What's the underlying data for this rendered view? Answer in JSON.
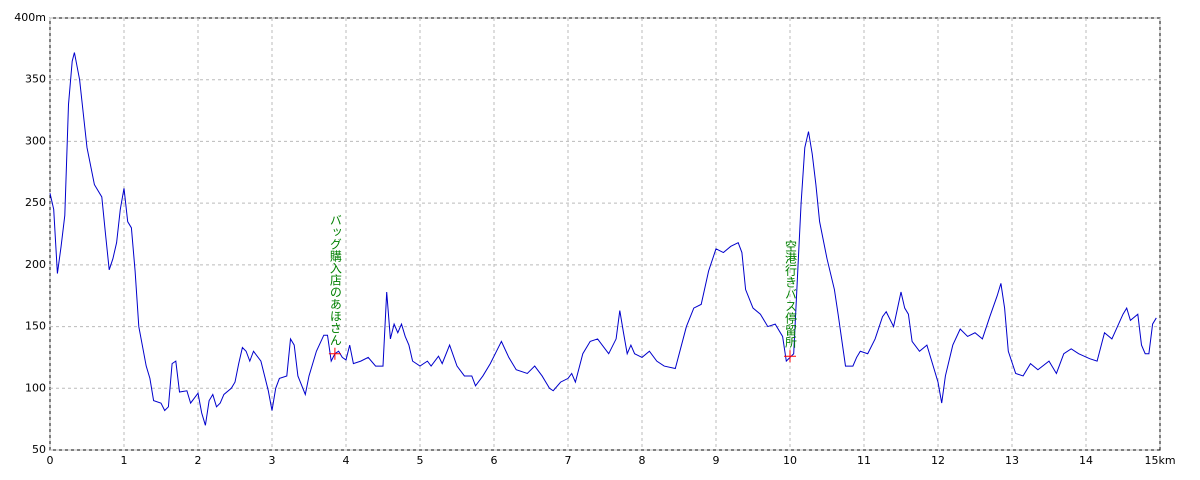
{
  "chart_data": {
    "type": "line",
    "x": [
      0,
      0.05,
      0.1,
      0.15,
      0.2,
      0.25,
      0.3,
      0.33,
      0.4,
      0.5,
      0.6,
      0.7,
      0.75,
      0.8,
      0.85,
      0.9,
      0.95,
      1.0,
      1.05,
      1.1,
      1.15,
      1.2,
      1.3,
      1.35,
      1.4,
      1.5,
      1.55,
      1.6,
      1.65,
      1.7,
      1.75,
      1.85,
      1.9,
      2.0,
      2.05,
      2.1,
      2.15,
      2.2,
      2.25,
      2.3,
      2.35,
      2.45,
      2.5,
      2.55,
      2.6,
      2.65,
      2.7,
      2.75,
      2.85,
      2.95,
      3.0,
      3.05,
      3.1,
      3.2,
      3.25,
      3.3,
      3.35,
      3.45,
      3.5,
      3.6,
      3.7,
      3.75,
      3.8,
      3.85,
      3.9,
      3.95,
      4.0,
      4.05,
      4.1,
      4.2,
      4.3,
      4.4,
      4.5,
      4.55,
      4.6,
      4.65,
      4.7,
      4.75,
      4.8,
      4.85,
      4.9,
      5.0,
      5.1,
      5.15,
      5.25,
      5.3,
      5.4,
      5.5,
      5.6,
      5.7,
      5.75,
      5.85,
      5.95,
      6.05,
      6.1,
      6.2,
      6.3,
      6.45,
      6.55,
      6.65,
      6.75,
      6.8,
      6.9,
      7.0,
      7.05,
      7.1,
      7.2,
      7.3,
      7.4,
      7.5,
      7.55,
      7.65,
      7.7,
      7.75,
      7.8,
      7.85,
      7.9,
      8.0,
      8.1,
      8.2,
      8.3,
      8.45,
      8.6,
      8.7,
      8.8,
      8.9,
      9.0,
      9.1,
      9.2,
      9.3,
      9.35,
      9.4,
      9.5,
      9.6,
      9.7,
      9.8,
      9.9,
      9.95,
      10.05,
      10.15,
      10.2,
      10.25,
      10.3,
      10.35,
      10.4,
      10.5,
      10.6,
      10.65,
      10.75,
      10.85,
      10.9,
      10.95,
      11.05,
      11.15,
      11.25,
      11.3,
      11.4,
      11.5,
      11.55,
      11.6,
      11.65,
      11.75,
      11.85,
      11.95,
      12.0,
      12.05,
      12.1,
      12.2,
      12.3,
      12.4,
      12.5,
      12.6,
      12.7,
      12.8,
      12.85,
      12.9,
      12.95,
      13.05,
      13.15,
      13.25,
      13.35,
      13.5,
      13.6,
      13.7,
      13.8,
      13.9,
      14.05,
      14.15,
      14.25,
      14.35,
      14.5,
      14.55,
      14.6,
      14.7,
      14.75,
      14.8,
      14.85,
      14.9,
      14.95
    ],
    "series": [
      {
        "color": "#0000cc",
        "values": [
          258,
          245,
          193,
          215,
          240,
          330,
          365,
          372,
          350,
          295,
          265,
          255,
          225,
          196,
          205,
          218,
          245,
          262,
          235,
          230,
          195,
          150,
          118,
          108,
          90,
          88,
          82,
          85,
          120,
          122,
          97,
          98,
          88,
          96,
          80,
          70,
          90,
          95,
          85,
          88,
          95,
          100,
          105,
          120,
          133,
          130,
          122,
          130,
          122,
          98,
          82,
          100,
          108,
          110,
          140,
          135,
          110,
          95,
          110,
          130,
          143,
          143,
          122,
          128,
          130,
          125,
          123,
          135,
          120,
          122,
          125,
          118,
          118,
          178,
          140,
          152,
          145,
          152,
          142,
          135,
          122,
          118,
          122,
          118,
          126,
          120,
          135,
          118,
          110,
          110,
          102,
          110,
          120,
          132,
          138,
          125,
          115,
          112,
          118,
          110,
          100,
          98,
          105,
          108,
          112,
          105,
          128,
          138,
          140,
          132,
          128,
          140,
          163,
          145,
          128,
          135,
          128,
          125,
          130,
          122,
          118,
          116,
          150,
          165,
          168,
          195,
          213,
          210,
          215,
          218,
          210,
          180,
          165,
          160,
          150,
          152,
          142,
          122,
          128,
          250,
          295,
          308,
          290,
          265,
          235,
          205,
          180,
          160,
          118,
          118,
          125,
          130,
          128,
          140,
          158,
          162,
          150,
          178,
          165,
          160,
          138,
          130,
          135,
          115,
          105,
          88,
          110,
          135,
          148,
          142,
          145,
          140,
          158,
          175,
          185,
          165,
          130,
          112,
          110,
          120,
          115,
          122,
          112,
          128,
          132,
          128,
          124,
          122,
          145,
          140,
          160,
          165,
          155,
          160,
          135,
          128,
          128,
          152,
          157
        ]
      }
    ],
    "xlim": [
      0,
      15
    ],
    "xticks": [
      0,
      1,
      2,
      3,
      4,
      5,
      6,
      7,
      8,
      9,
      10,
      11,
      12,
      13,
      14,
      {
        "value": 15,
        "label": "15km"
      }
    ],
    "ylim": [
      50,
      400
    ],
    "yticks": [
      50,
      100,
      150,
      200,
      250,
      300,
      350,
      {
        "value": 400,
        "label": "400m"
      }
    ],
    "grid": true,
    "annotations": [
      {
        "text": "バッグ購入店のあほさん",
        "x": 3.85,
        "y": 128,
        "color": "#008000",
        "marker_color": "#ff0000"
      },
      {
        "text": "空港行きバス停留所",
        "x": 10.0,
        "y": 126,
        "color": "#008000",
        "marker_color": "#ff0000"
      }
    ]
  }
}
